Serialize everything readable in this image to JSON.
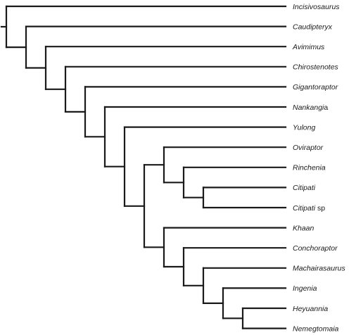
{
  "taxa": [
    {
      "id": "incisivosaurus",
      "genus": "Incisivosaurus",
      "suffix": ""
    },
    {
      "id": "caudipteryx",
      "genus": "Caudipteryx",
      "suffix": ""
    },
    {
      "id": "avimimus",
      "genus": "Avimimus",
      "suffix": ""
    },
    {
      "id": "chirostenotes",
      "genus": "Chirostenotes",
      "suffix": ""
    },
    {
      "id": "gigantoraptor",
      "genus": "Gigantoraptor",
      "suffix": ""
    },
    {
      "id": "nankangia",
      "genus": "Nankangi",
      "suffix": "a"
    },
    {
      "id": "yulong",
      "genus": "Yulong",
      "suffix": ""
    },
    {
      "id": "oviraptor",
      "genus": "Oviraptor",
      "suffix": ""
    },
    {
      "id": "rinchenia",
      "genus": "Rinchenia",
      "suffix": ""
    },
    {
      "id": "citipati",
      "genus": "Citipati",
      "suffix": ""
    },
    {
      "id": "citipati-sp",
      "genus": "Citipati",
      "suffix": " sp"
    },
    {
      "id": "khaan",
      "genus": "Khaan",
      "suffix": ""
    },
    {
      "id": "conchoraptor",
      "genus": "Conchoraptor",
      "suffix": ""
    },
    {
      "id": "machairasaurus",
      "genus": "Machairasaurus",
      "suffix": ""
    },
    {
      "id": "ingenia",
      "genus": "Ingenia",
      "suffix": ""
    },
    {
      "id": "heyuannia",
      "genus": "Heyuannia",
      "suffix": ""
    },
    {
      "id": "nemegtomaia",
      "genus": "Nemegtomaia",
      "suffix": ""
    }
  ],
  "tree": {
    "children": [
      {
        "leaf": 0
      },
      {
        "children": [
          {
            "leaf": 1
          },
          {
            "children": [
              {
                "leaf": 2
              },
              {
                "children": [
                  {
                    "leaf": 3
                  },
                  {
                    "children": [
                      {
                        "leaf": 4
                      },
                      {
                        "children": [
                          {
                            "leaf": 5
                          },
                          {
                            "children": [
                              {
                                "leaf": 6
                              },
                              {
                                "children": [
                                  {
                                    "children": [
                                      {
                                        "leaf": 7
                                      },
                                      {
                                        "children": [
                                          {
                                            "leaf": 8
                                          },
                                          {
                                            "children": [
                                              {
                                                "leaf": 9
                                              },
                                              {
                                                "leaf": 10
                                              }
                                            ]
                                          }
                                        ]
                                      }
                                    ]
                                  },
                                  {
                                    "children": [
                                      {
                                        "leaf": 11
                                      },
                                      {
                                        "children": [
                                          {
                                            "leaf": 12
                                          },
                                          {
                                            "children": [
                                              {
                                                "leaf": 13
                                              },
                                              {
                                                "children": [
                                                  {
                                                    "leaf": 14
                                                  },
                                                  {
                                                    "children": [
                                                      {
                                                        "leaf": 15
                                                      },
                                                      {
                                                        "leaf": 16
                                                      }
                                                    ]
                                                  }
                                                ]
                                              }
                                            ]
                                          }
                                        ]
                                      }
                                    ]
                                  }
                                ]
                              }
                            ]
                          }
                        ]
                      }
                    ]
                  }
                ]
              }
            ]
          }
        ]
      }
    ]
  }
}
